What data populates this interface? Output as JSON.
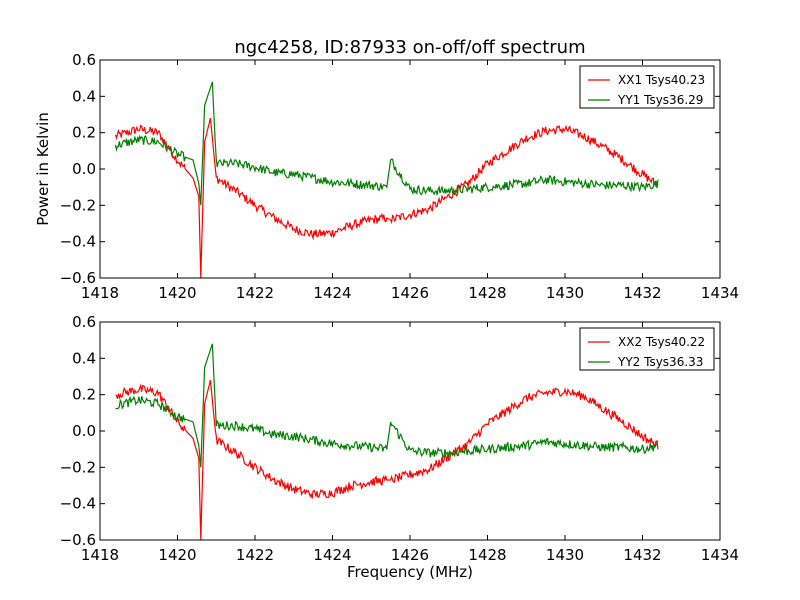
{
  "title": "ngc4258, ID:87933 on-off/off spectrum",
  "ylabel": "Power in Kelvin",
  "xlabel": "Frequency (MHz)",
  "colors": {
    "series_a": "#ff0000",
    "series_b": "#008000"
  },
  "chart_data": [
    {
      "type": "line",
      "xlim": [
        1418,
        1434
      ],
      "ylim": [
        -0.6,
        0.6
      ],
      "xticks": [
        1418,
        1420,
        1422,
        1424,
        1426,
        1428,
        1430,
        1432,
        1434
      ],
      "yticks": [
        -0.6,
        -0.4,
        -0.2,
        0.0,
        0.2,
        0.4,
        0.6
      ],
      "ytick_labels": [
        "−0.6",
        "−0.4",
        "−0.2",
        "0.0",
        "0.2",
        "0.4",
        "0.6"
      ],
      "legend_position": "top-right",
      "series": [
        {
          "name": "XX1 Tsys40.23",
          "color": "#ff0000",
          "x": [
            1418.4,
            1419.0,
            1419.5,
            1420.0,
            1420.4,
            1420.55,
            1420.6,
            1420.7,
            1420.85,
            1421.0,
            1421.5,
            1422.0,
            1422.5,
            1423.0,
            1423.5,
            1424.0,
            1424.5,
            1425.0,
            1425.4,
            1425.5,
            1426.0,
            1426.5,
            1427.0,
            1427.5,
            1428.0,
            1428.5,
            1429.0,
            1429.5,
            1430.0,
            1430.5,
            1431.0,
            1431.5,
            1432.0,
            1432.4
          ],
          "y": [
            0.18,
            0.22,
            0.2,
            0.05,
            -0.05,
            -0.15,
            -0.6,
            0.15,
            0.28,
            -0.05,
            -0.12,
            -0.2,
            -0.27,
            -0.33,
            -0.36,
            -0.35,
            -0.31,
            -0.28,
            -0.27,
            -0.28,
            -0.25,
            -0.22,
            -0.15,
            -0.08,
            0.03,
            0.1,
            0.17,
            0.21,
            0.22,
            0.18,
            0.12,
            0.05,
            -0.03,
            -0.09
          ]
        },
        {
          "name": "YY1 Tsys36.29",
          "color": "#008000",
          "x": [
            1418.4,
            1419.0,
            1419.5,
            1420.0,
            1420.4,
            1420.55,
            1420.6,
            1420.7,
            1420.9,
            1421.0,
            1421.5,
            1422.0,
            1422.5,
            1423.0,
            1423.5,
            1424.0,
            1424.5,
            1425.0,
            1425.4,
            1425.5,
            1426.0,
            1426.5,
            1427.0,
            1427.5,
            1428.0,
            1428.5,
            1429.0,
            1429.5,
            1430.0,
            1430.5,
            1431.0,
            1431.5,
            1432.0,
            1432.4
          ],
          "y": [
            0.13,
            0.16,
            0.15,
            0.08,
            0.05,
            -0.08,
            -0.2,
            0.35,
            0.48,
            0.03,
            0.03,
            0.01,
            -0.02,
            -0.03,
            -0.05,
            -0.07,
            -0.08,
            -0.09,
            -0.1,
            0.05,
            -0.11,
            -0.12,
            -0.12,
            -0.11,
            -0.1,
            -0.09,
            -0.08,
            -0.06,
            -0.07,
            -0.08,
            -0.09,
            -0.09,
            -0.1,
            -0.08
          ]
        }
      ]
    },
    {
      "type": "line",
      "xlim": [
        1418,
        1434
      ],
      "ylim": [
        -0.6,
        0.6
      ],
      "xticks": [
        1418,
        1420,
        1422,
        1424,
        1426,
        1428,
        1430,
        1432,
        1434
      ],
      "yticks": [
        -0.6,
        -0.4,
        -0.2,
        0.0,
        0.2,
        0.4,
        0.6
      ],
      "ytick_labels": [
        "−0.6",
        "−0.4",
        "−0.2",
        "0.0",
        "0.2",
        "0.4",
        "0.6"
      ],
      "legend_position": "top-right",
      "series": [
        {
          "name": "XX2 Tsys40.22",
          "color": "#ff0000",
          "x": [
            1418.4,
            1419.0,
            1419.5,
            1420.0,
            1420.4,
            1420.55,
            1420.6,
            1420.7,
            1420.85,
            1421.0,
            1421.5,
            1422.0,
            1422.5,
            1423.0,
            1423.5,
            1424.0,
            1424.5,
            1425.0,
            1425.4,
            1425.5,
            1426.0,
            1426.5,
            1427.0,
            1427.5,
            1428.0,
            1428.5,
            1429.0,
            1429.5,
            1430.0,
            1430.5,
            1431.0,
            1431.5,
            1432.0,
            1432.4
          ],
          "y": [
            0.2,
            0.23,
            0.21,
            0.05,
            -0.04,
            -0.15,
            -0.6,
            0.15,
            0.28,
            -0.05,
            -0.12,
            -0.2,
            -0.27,
            -0.32,
            -0.35,
            -0.34,
            -0.3,
            -0.28,
            -0.27,
            -0.27,
            -0.24,
            -0.21,
            -0.14,
            -0.07,
            0.04,
            0.11,
            0.18,
            0.21,
            0.22,
            0.19,
            0.12,
            0.05,
            -0.03,
            -0.08
          ]
        },
        {
          "name": "YY2 Tsys36.33",
          "color": "#008000",
          "x": [
            1418.4,
            1419.0,
            1419.5,
            1420.0,
            1420.4,
            1420.55,
            1420.6,
            1420.7,
            1420.9,
            1421.0,
            1421.5,
            1422.0,
            1422.5,
            1423.0,
            1423.5,
            1424.0,
            1424.5,
            1425.0,
            1425.4,
            1425.5,
            1426.0,
            1426.5,
            1427.0,
            1427.5,
            1428.0,
            1428.5,
            1429.0,
            1429.5,
            1430.0,
            1430.5,
            1431.0,
            1431.5,
            1432.0,
            1432.4
          ],
          "y": [
            0.14,
            0.17,
            0.15,
            0.08,
            0.05,
            -0.08,
            -0.2,
            0.35,
            0.48,
            0.03,
            0.03,
            0.01,
            -0.02,
            -0.03,
            -0.05,
            -0.07,
            -0.08,
            -0.09,
            -0.1,
            0.05,
            -0.11,
            -0.12,
            -0.12,
            -0.11,
            -0.1,
            -0.09,
            -0.08,
            -0.06,
            -0.07,
            -0.08,
            -0.09,
            -0.09,
            -0.1,
            -0.08
          ]
        }
      ]
    }
  ]
}
